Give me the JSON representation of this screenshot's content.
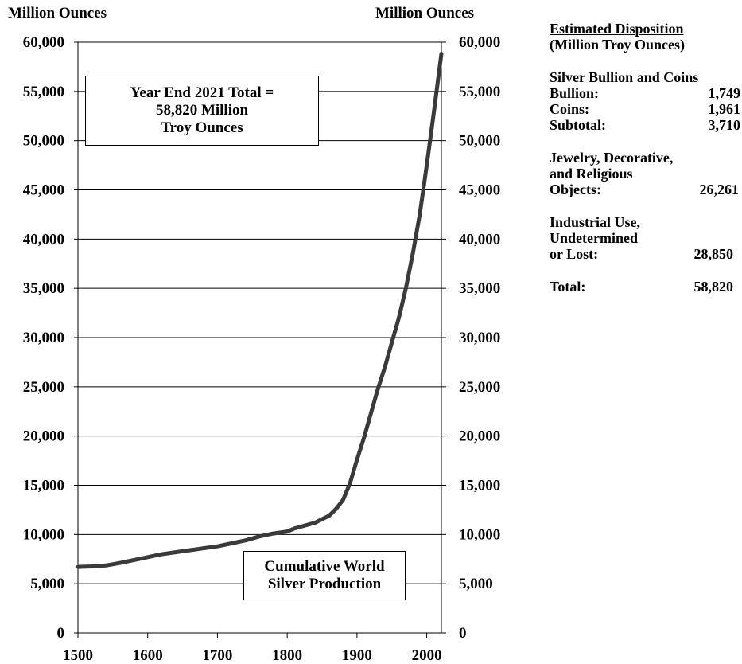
{
  "left_axis_title": "Million Ounces",
  "right_axis_title": "Million Ounces",
  "total_box": {
    "line1": "Year End 2021 Total =",
    "line2": "58,820 Million",
    "line3": "Troy Ounces"
  },
  "series_box": {
    "line1": "Cumulative World",
    "line2": "Silver Production"
  },
  "disposition": {
    "heading": "Estimated Disposition",
    "subheading": "(Million Troy Ounces)",
    "bullion_coins_heading": "Silver Bullion and Coins",
    "bullion_label": "Bullion:",
    "bullion_value": "1,749",
    "coins_label": "Coins:",
    "coins_value": "1,961",
    "subtotal_label": "Subtotal:",
    "subtotal_value": "3,710",
    "jewelry_line1": "Jewelry, Decorative,",
    "jewelry_line2": "and Religious",
    "jewelry_label": "Objects:",
    "jewelry_value": "26,261",
    "industrial_line1": "Industrial Use,",
    "industrial_line2": "Undetermined",
    "industrial_label": "or Lost:",
    "industrial_value": "28,850",
    "total_label": "Total:",
    "total_value": "58,820"
  },
  "chart_data": {
    "type": "line",
    "xlim": [
      1500,
      2021
    ],
    "ylim": [
      0,
      60000
    ],
    "x_ticks": [
      1500,
      1600,
      1700,
      1800,
      1900,
      2000
    ],
    "x_tick_labels": [
      "1500",
      "1600",
      "1700",
      "1800",
      "1900",
      "2000"
    ],
    "y_ticks": [
      0,
      5000,
      10000,
      15000,
      20000,
      25000,
      30000,
      35000,
      40000,
      45000,
      50000,
      55000,
      60000
    ],
    "y_tick_labels": [
      "0",
      "5,000",
      "10,000",
      "15,000",
      "20,000",
      "25,000",
      "30,000",
      "35,000",
      "40,000",
      "45,000",
      "50,000",
      "55,000",
      "60,000"
    ],
    "grid": true,
    "line_color": "#3a3a3a",
    "series": [
      {
        "x": [
          1500,
          1520,
          1540,
          1560,
          1580,
          1600,
          1620,
          1640,
          1660,
          1680,
          1700,
          1720,
          1740,
          1760,
          1780,
          1800,
          1810,
          1820,
          1840,
          1860,
          1870,
          1880,
          1890,
          1900,
          1910,
          1920,
          1930,
          1940,
          1950,
          1960,
          1970,
          1980,
          1990,
          2000,
          2010,
          2021
        ],
        "y": [
          6700,
          6750,
          6850,
          7100,
          7400,
          7700,
          8000,
          8200,
          8400,
          8600,
          8800,
          9100,
          9400,
          9800,
          10100,
          10300,
          10600,
          10800,
          11200,
          11900,
          12600,
          13500,
          15200,
          17600,
          19800,
          22300,
          24800,
          27000,
          29500,
          32000,
          35000,
          38500,
          42500,
          47500,
          52800,
          58820
        ]
      }
    ]
  }
}
